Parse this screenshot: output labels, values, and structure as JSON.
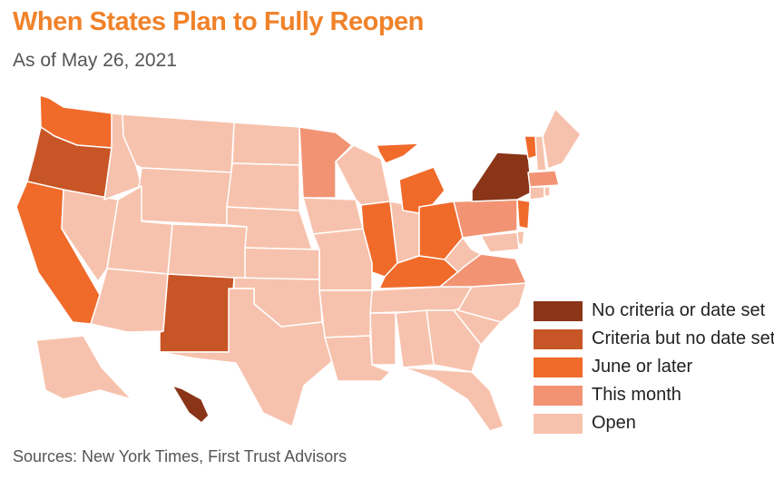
{
  "title": "When States Plan to Fully Reopen",
  "subtitle": "As of May 26, 2021",
  "source": "Sources: New York Times, First Trust Advisors",
  "legend": [
    {
      "label": "No criteria or date set",
      "color": "#8a3418"
    },
    {
      "label": "Criteria but no date set",
      "color": "#c85526"
    },
    {
      "label": "June or later",
      "color": "#f06a2a"
    },
    {
      "label": "This month",
      "color": "#f29474"
    },
    {
      "label": "Open",
      "color": "#f7c2ad"
    }
  ],
  "map_states": {
    "WA": "June or later",
    "OR": "Criteria but no date set",
    "CA": "June or later",
    "ID": "Open",
    "NV": "Open",
    "MT": "Open",
    "WY": "Open",
    "UT": "Open",
    "AZ": "Open",
    "CO": "Open",
    "NM": "Criteria but no date set",
    "ND": "Open",
    "SD": "Open",
    "NE": "Open",
    "KS": "Open",
    "OK": "Open",
    "TX": "Open",
    "MN": "This month",
    "IA": "Open",
    "MO": "Open",
    "AR": "Open",
    "LA": "Open",
    "WI": "Open",
    "IL": "June or later",
    "MI": "June or later",
    "IN": "Open",
    "OH": "June or later",
    "KY": "June or later",
    "TN": "Open",
    "MS": "Open",
    "AL": "Open",
    "GA": "Open",
    "FL": "Open",
    "SC": "Open",
    "NC": "Open",
    "VA": "This month",
    "WV": "Open",
    "PA": "This month",
    "NY": "No criteria or date set",
    "NJ": "June or later",
    "DE": "Open",
    "MD": "Open",
    "VT": "June or later",
    "NH": "Open",
    "ME": "Open",
    "MA": "This month",
    "CT": "Open",
    "RI": "Open",
    "AK": "Open",
    "HI": "No criteria or date set"
  }
}
